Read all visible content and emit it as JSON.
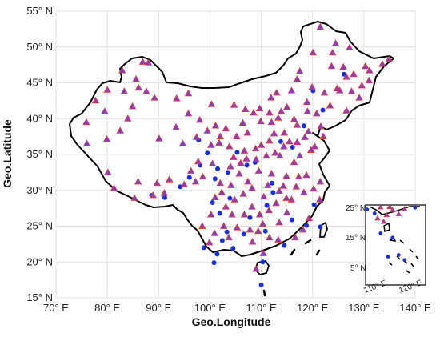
{
  "axes": {
    "xlabel": "Geo.Longitude",
    "ylabel": "Geo.Latitude",
    "x_ticks": [
      "70° E",
      "80° E",
      "90° E",
      "100° E",
      "110° E",
      "120° E",
      "130° E",
      "140° E"
    ],
    "y_ticks": [
      "15° N",
      "20° N",
      "25° N",
      "30° N",
      "35° N",
      "40° N",
      "45° N",
      "50° N",
      "55° N"
    ],
    "x_range": [
      70,
      140
    ],
    "y_range": [
      15,
      55
    ],
    "grid": true
  },
  "inset": {
    "x_ticks": [
      "110° E",
      "120° E"
    ],
    "y_ticks": [
      "25° N",
      "15° N",
      "5° N"
    ]
  },
  "colors": {
    "triangle_fill": "#8a3fb8",
    "triangle_edge": "#d63b3b",
    "dot": "#1a2fe0",
    "boundary": "#000000",
    "grid": "#e3e3e3"
  },
  "stations": {
    "triangles": [
      [
        121.5,
        52.8
      ],
      [
        124.5,
        50.5
      ],
      [
        127.2,
        49.9
      ],
      [
        120.1,
        49.2
      ],
      [
        126.0,
        47.2
      ],
      [
        128.0,
        46.2
      ],
      [
        123.7,
        47.3
      ],
      [
        130.3,
        47.3
      ],
      [
        131.0,
        45.3
      ],
      [
        133.6,
        47.6
      ],
      [
        134.9,
        48.3
      ],
      [
        129.6,
        44.6
      ],
      [
        126.6,
        45.8
      ],
      [
        124.8,
        44.2
      ],
      [
        122.3,
        43.6
      ],
      [
        119.9,
        44.4
      ],
      [
        117.0,
        45.5
      ],
      [
        115.9,
        43.9
      ],
      [
        113.0,
        43.6
      ],
      [
        111.9,
        42.9
      ],
      [
        109.7,
        41.4
      ],
      [
        111.6,
        40.8
      ],
      [
        106.9,
        41.3
      ],
      [
        104.7,
        41.9
      ],
      [
        100.3,
        42.0
      ],
      [
        106.4,
        39.4
      ],
      [
        109.9,
        39.6
      ],
      [
        103.1,
        38.6
      ],
      [
        102.0,
        37.5
      ],
      [
        97.4,
        37.4
      ],
      [
        93.4,
        38.8
      ],
      [
        95.8,
        40.7
      ],
      [
        94.7,
        36.5
      ],
      [
        100.2,
        36.3
      ],
      [
        101.8,
        36.6
      ],
      [
        103.8,
        36.1
      ],
      [
        106.7,
        35.5
      ],
      [
        104.6,
        34.6
      ],
      [
        107.1,
        34.4
      ],
      [
        109.0,
        34.3
      ],
      [
        110.0,
        36.3
      ],
      [
        112.5,
        37.9
      ],
      [
        113.6,
        34.8
      ],
      [
        112.0,
        32.3
      ],
      [
        114.3,
        30.6
      ],
      [
        111.3,
        30.7
      ],
      [
        112.9,
        28.2
      ],
      [
        111.5,
        27.2
      ],
      [
        109.7,
        26.6
      ],
      [
        113.5,
        25.5
      ],
      [
        115.9,
        28.7
      ],
      [
        115.0,
        26.9
      ],
      [
        117.3,
        31.9
      ],
      [
        116.4,
        33.9
      ],
      [
        118.8,
        32.1
      ],
      [
        120.2,
        30.2
      ],
      [
        121.5,
        31.2
      ],
      [
        119.3,
        26.1
      ],
      [
        118.1,
        24.5
      ],
      [
        117.0,
        39.1
      ],
      [
        116.4,
        39.9
      ],
      [
        114.5,
        38.0
      ],
      [
        115.5,
        36.8
      ],
      [
        117.0,
        36.7
      ],
      [
        120.4,
        36.1
      ],
      [
        122.1,
        37.5
      ],
      [
        118.5,
        37.4
      ],
      [
        119.0,
        41.0
      ],
      [
        121.6,
        38.9
      ],
      [
        123.4,
        41.8
      ],
      [
        125.3,
        43.9
      ],
      [
        126.6,
        41.1
      ],
      [
        113.3,
        23.1
      ],
      [
        110.4,
        21.2
      ],
      [
        108.3,
        22.8
      ],
      [
        110.3,
        25.3
      ],
      [
        106.7,
        26.6
      ],
      [
        104.3,
        26.6
      ],
      [
        102.7,
        25.0
      ],
      [
        100.2,
        26.6
      ],
      [
        98.5,
        25.0
      ],
      [
        99.9,
        22.7
      ],
      [
        104.1,
        30.7
      ],
      [
        106.5,
        29.5
      ],
      [
        102.3,
        29.7
      ],
      [
        98.6,
        31.9
      ],
      [
        97.2,
        31.2
      ],
      [
        91.1,
        29.6
      ],
      [
        88.9,
        29.3
      ],
      [
        85.3,
        28.9
      ],
      [
        80.1,
        32.5
      ],
      [
        79.9,
        37.1
      ],
      [
        75.9,
        39.5
      ],
      [
        76.0,
        36.5
      ],
      [
        84.9,
        41.7
      ],
      [
        87.6,
        43.8
      ],
      [
        86.1,
        44.3
      ],
      [
        82.9,
        46.7
      ],
      [
        80.0,
        44.0
      ],
      [
        89.2,
        42.9
      ],
      [
        93.5,
        42.8
      ],
      [
        95.8,
        43.5
      ],
      [
        88.0,
        47.8
      ],
      [
        85.6,
        45.5
      ],
      [
        86.9,
        47.9
      ],
      [
        84.0,
        40.0
      ],
      [
        82.5,
        38.3
      ],
      [
        90.1,
        37.2
      ],
      [
        98.0,
        39.8
      ],
      [
        99.5,
        38.3
      ],
      [
        105.2,
        37.5
      ],
      [
        107.3,
        38.0
      ],
      [
        109.5,
        32.7
      ],
      [
        108.2,
        30.3
      ],
      [
        110.5,
        29.1
      ],
      [
        116.6,
        23.4
      ],
      [
        109.0,
        19.0
      ],
      [
        105.7,
        32.3
      ],
      [
        107.4,
        31.2
      ],
      [
        113.5,
        29.9
      ],
      [
        114.9,
        32.0
      ],
      [
        116.8,
        30.5
      ],
      [
        118.3,
        29.7
      ],
      [
        121.4,
        28.7
      ],
      [
        119.7,
        35.6
      ],
      [
        117.5,
        34.8
      ],
      [
        114.4,
        36.1
      ],
      [
        112.7,
        35.2
      ],
      [
        111.0,
        34.8
      ],
      [
        113.3,
        40.1
      ],
      [
        115.0,
        41.6
      ],
      [
        118.9,
        42.3
      ],
      [
        120.8,
        40.7
      ],
      [
        127.6,
        43.8
      ],
      [
        129.1,
        42.9
      ],
      [
        131.1,
        46.7
      ],
      [
        123.9,
        49.2
      ],
      [
        117.5,
        46.6
      ],
      [
        113.9,
        41.0
      ],
      [
        102.0,
        31.0
      ],
      [
        101.0,
        29.0
      ],
      [
        100.9,
        24.0
      ],
      [
        103.7,
        23.4
      ],
      [
        105.3,
        24.8
      ],
      [
        107.8,
        24.5
      ],
      [
        109.4,
        24.3
      ],
      [
        111.6,
        23.4
      ],
      [
        95.0,
        30.8
      ],
      [
        92.1,
        31.5
      ],
      [
        81.3,
        30.3
      ],
      [
        86.0,
        31.2
      ],
      [
        89.7,
        31.0
      ],
      [
        79.5,
        41.0
      ],
      [
        83.3,
        43.8
      ],
      [
        77.7,
        42.5
      ],
      [
        97.7,
        34.0
      ],
      [
        96.3,
        32.7
      ],
      [
        100.5,
        33.7
      ],
      [
        104.0,
        33.3
      ],
      [
        106.0,
        33.8
      ],
      [
        108.9,
        35.8
      ],
      [
        112.0,
        39.5
      ],
      [
        111.6,
        36.9
      ],
      [
        119.2,
        38.2
      ],
      [
        103.1,
        27.7
      ],
      [
        108.2,
        27.7
      ],
      [
        114.9,
        28.9
      ],
      [
        104.8,
        28.7
      ],
      [
        101.1,
        39.0
      ],
      [
        108.5,
        40.8
      ]
    ],
    "dots": [
      [
        97.8,
        37.0
      ],
      [
        99.5,
        35.2
      ],
      [
        98.1,
        33.5
      ],
      [
        101.5,
        33.0
      ],
      [
        100.5,
        28.3
      ],
      [
        96.0,
        31.8
      ],
      [
        94.2,
        30.5
      ],
      [
        91.2,
        29.0
      ],
      [
        88.6,
        29.3
      ],
      [
        101.0,
        31.6
      ],
      [
        103.5,
        32.5
      ],
      [
        105.3,
        35.3
      ],
      [
        108.8,
        33.9
      ],
      [
        103.9,
        28.9
      ],
      [
        101.9,
        26.8
      ],
      [
        103.3,
        24.2
      ],
      [
        102.4,
        23.0
      ],
      [
        98.8,
        22.0
      ],
      [
        101.4,
        21.1
      ],
      [
        106.6,
        23.9
      ],
      [
        107.8,
        26.2
      ],
      [
        110.8,
        24.3
      ],
      [
        116.0,
        25.9
      ],
      [
        118.8,
        25.1
      ],
      [
        120.3,
        28.0
      ],
      [
        111.1,
        27.9
      ],
      [
        112.3,
        29.7
      ],
      [
        114.5,
        22.3
      ],
      [
        110.3,
        20.0
      ],
      [
        110.0,
        16.8
      ],
      [
        100.8,
        19.9
      ],
      [
        104.5,
        21.9
      ],
      [
        112.1,
        31.0
      ],
      [
        113.8,
        36.8
      ],
      [
        107.2,
        33.5
      ],
      [
        116.1,
        36.0
      ],
      [
        120.1,
        43.9
      ],
      [
        126.1,
        46.2
      ],
      [
        122.0,
        41.2
      ],
      [
        118.3,
        39.0
      ],
      [
        121.5,
        24.9
      ]
    ]
  },
  "inset_points": {
    "triangles": [
      [
        110,
        25.3
      ],
      [
        114,
        24.5
      ],
      [
        118,
        24.8
      ],
      [
        112,
        23.0
      ],
      [
        109,
        22.0
      ],
      [
        111,
        21.0
      ],
      [
        116,
        23.3
      ],
      [
        113,
        25.4
      ]
    ],
    "dots": [
      [
        105.5,
        24.6
      ],
      [
        108,
        23.5
      ],
      [
        121.5,
        25.2
      ],
      [
        112.5,
        10.5
      ],
      [
        114,
        16.2
      ],
      [
        116,
        11.0
      ],
      [
        118,
        9.5
      ],
      [
        110,
        17.5
      ]
    ]
  }
}
